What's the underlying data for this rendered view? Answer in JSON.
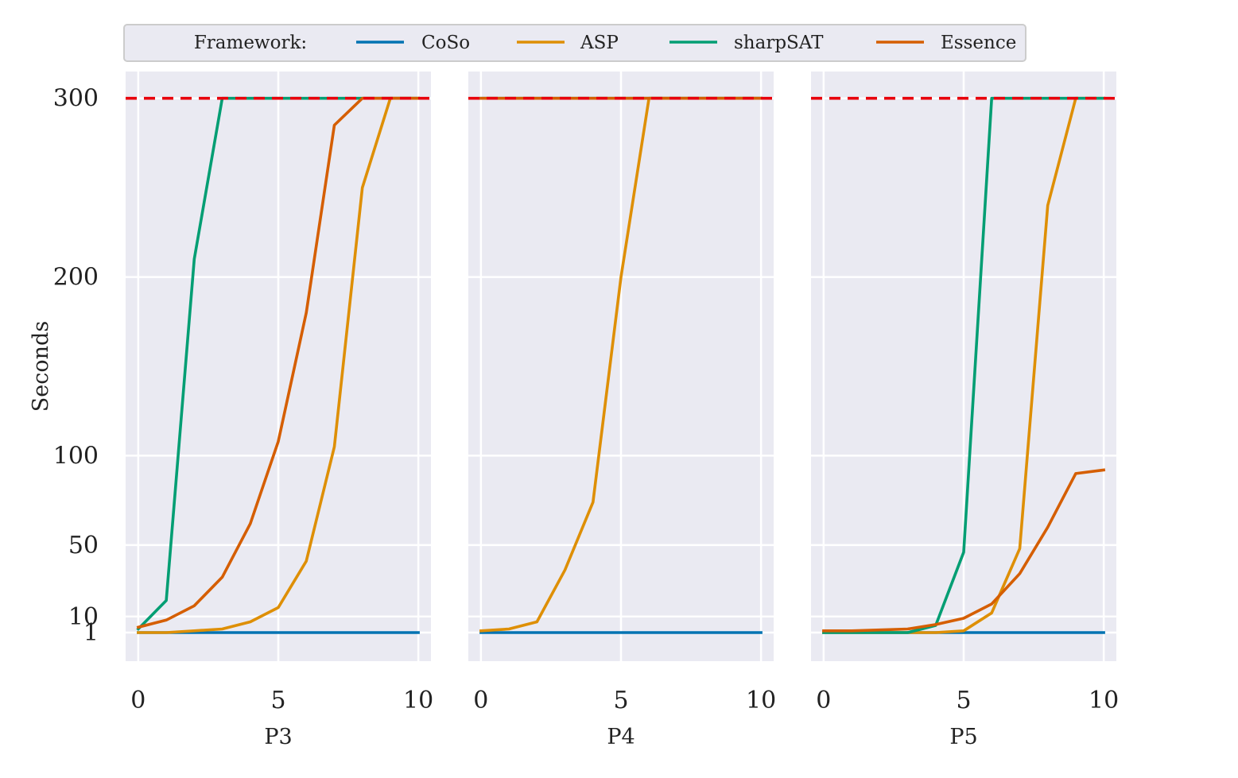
{
  "chart_data": {
    "type": "line",
    "ylabel": "Seconds",
    "yticks": [
      1,
      10,
      50,
      100,
      200,
      300
    ],
    "ylim": [
      -15,
      315
    ],
    "xticks": [
      0,
      5,
      10
    ],
    "xlim": [
      -0.45,
      10.45
    ],
    "timeout": 300,
    "timeout_color": "#e8000b",
    "legend": {
      "title": "Framework:",
      "placement": "top",
      "entries": [
        {
          "name": "CoSo",
          "color": "#0173b2"
        },
        {
          "name": "ASP",
          "color": "#de8f05"
        },
        {
          "name": "sharpSAT",
          "color": "#029e73"
        },
        {
          "name": "Essence",
          "color": "#d55e00"
        }
      ]
    },
    "panels": [
      {
        "xlabel": "P3",
        "series": [
          {
            "name": "CoSo",
            "x": [
              0,
              1,
              2,
              3,
              4,
              5,
              6,
              7,
              8,
              9,
              10
            ],
            "y": [
              1,
              1,
              1,
              1,
              1,
              1,
              1,
              1,
              1,
              1,
              1
            ]
          },
          {
            "name": "ASP",
            "x": [
              0,
              1,
              2,
              3,
              4,
              5,
              6,
              7,
              8,
              9,
              10
            ],
            "y": [
              1,
              1,
              2,
              3,
              7,
              15,
              41,
              105,
              250,
              300,
              300
            ]
          },
          {
            "name": "sharpSAT",
            "x": [
              0,
              1,
              2,
              3,
              4,
              5,
              6,
              7,
              8,
              9,
              10
            ],
            "y": [
              3,
              19,
              210,
              300,
              300,
              300,
              300,
              300,
              300,
              300,
              300
            ]
          },
          {
            "name": "Essence",
            "x": [
              0,
              1,
              2,
              3,
              4,
              5,
              6,
              7,
              8,
              9,
              10
            ],
            "y": [
              4,
              8,
              16,
              32,
              62,
              108,
              180,
              285,
              300,
              300,
              300
            ]
          }
        ]
      },
      {
        "xlabel": "P4",
        "series": [
          {
            "name": "CoSo",
            "x": [
              0,
              1,
              2,
              3,
              4,
              5,
              6,
              7,
              8,
              9,
              10
            ],
            "y": [
              1,
              1,
              1,
              1,
              1,
              1,
              1,
              1,
              1,
              1,
              1
            ]
          },
          {
            "name": "ASP",
            "x": [
              0,
              1,
              2,
              3,
              4,
              5,
              6,
              7,
              8,
              9,
              10
            ],
            "y": [
              2,
              3,
              7,
              36,
              74,
              200,
              300,
              300,
              300,
              300,
              300
            ]
          },
          {
            "name": "sharpSAT",
            "x": [
              0,
              1,
              2,
              3,
              4,
              5,
              6,
              7,
              8,
              9,
              10
            ],
            "y": [
              300,
              300,
              300,
              300,
              300,
              300,
              300,
              300,
              300,
              300,
              300
            ]
          },
          {
            "name": "Essence",
            "x": [
              0,
              1,
              2,
              3,
              4,
              5,
              6,
              7,
              8,
              9,
              10
            ],
            "y": [
              300,
              300,
              300,
              300,
              300,
              300,
              300,
              300,
              300,
              300,
              300
            ]
          }
        ]
      },
      {
        "xlabel": "P5",
        "series": [
          {
            "name": "CoSo",
            "x": [
              0,
              1,
              2,
              3,
              4,
              5,
              6,
              7,
              8,
              9,
              10
            ],
            "y": [
              1,
              1,
              1,
              1,
              1,
              1,
              1,
              1,
              1,
              1,
              1
            ]
          },
          {
            "name": "ASP",
            "x": [
              0,
              1,
              2,
              3,
              4,
              5,
              6,
              7,
              8,
              9,
              10
            ],
            "y": [
              1,
              1,
              1,
              1,
              1,
              2,
              12,
              48,
              240,
              300,
              300
            ]
          },
          {
            "name": "sharpSAT",
            "x": [
              0,
              1,
              2,
              3,
              4,
              5,
              6,
              7,
              8,
              9,
              10
            ],
            "y": [
              1,
              1,
              1,
              1,
              5,
              46,
              300,
              300,
              300,
              300,
              300
            ]
          },
          {
            "name": "Essence",
            "x": [
              0,
              1,
              2,
              3,
              4,
              5,
              6,
              7,
              8,
              9,
              10
            ],
            "y": [
              2,
              2,
              2.5,
              3,
              5.5,
              9,
              17,
              34,
              60,
              90,
              92
            ]
          }
        ]
      }
    ]
  }
}
